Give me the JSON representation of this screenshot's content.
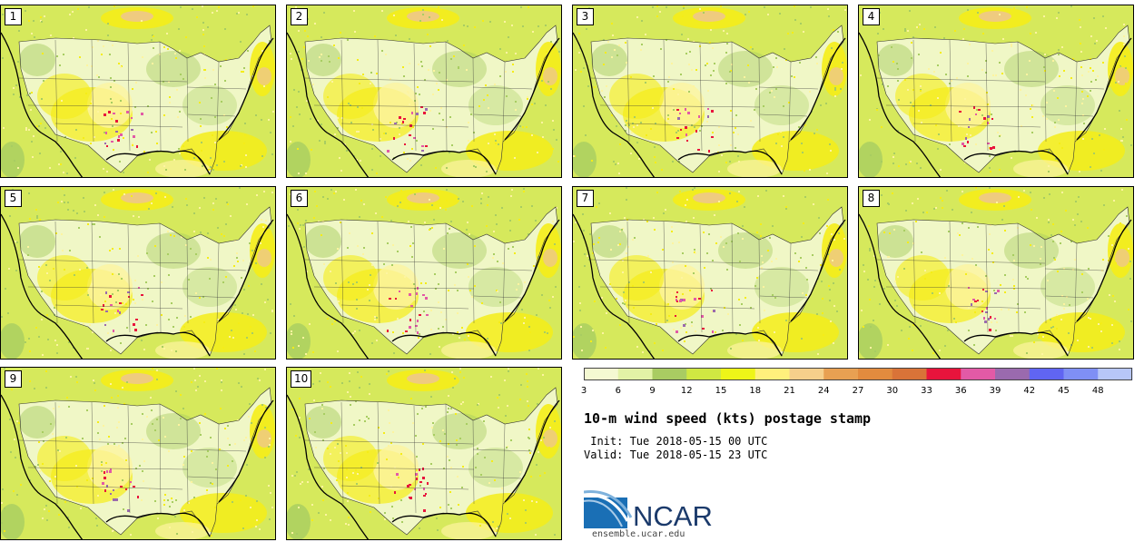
{
  "title": "10-m wind speed (kts) postage stamp",
  "init": " Init: Tue 2018-05-15 00 UTC",
  "valid": "Valid: Tue 2018-05-15 23 UTC",
  "logo_text": "NCAR",
  "site": "ensemble.ucar.edu",
  "members": [
    "1",
    "2",
    "3",
    "4",
    "5",
    "6",
    "7",
    "8",
    "9",
    "10"
  ],
  "colorbar": {
    "ticks": [
      "3",
      "6",
      "9",
      "12",
      "15",
      "18",
      "21",
      "24",
      "27",
      "30",
      "33",
      "36",
      "39",
      "42",
      "45",
      "48"
    ],
    "colors": [
      "#f4f9d2",
      "#e2f2a6",
      "#a9cc62",
      "#d0e842",
      "#eef518",
      "#fff07c",
      "#f6cf8b",
      "#e8a052",
      "#e28b3e",
      "#d97338",
      "#e8143c",
      "#e25aa6",
      "#9a6aae",
      "#6065f2",
      "#7f8ff5",
      "#b7c6f8"
    ]
  },
  "map_colors": {
    "background": "#d6e95c",
    "light": "#f0f7c6",
    "green": "#a8cd62",
    "yellow": "#f5ed18",
    "pale": "#fdf4a0",
    "tan": "#eec78a",
    "red": "#e8143c",
    "pink": "#e25aa6",
    "purple": "#9a6aae",
    "line": "#333333",
    "coast": "#000000"
  }
}
